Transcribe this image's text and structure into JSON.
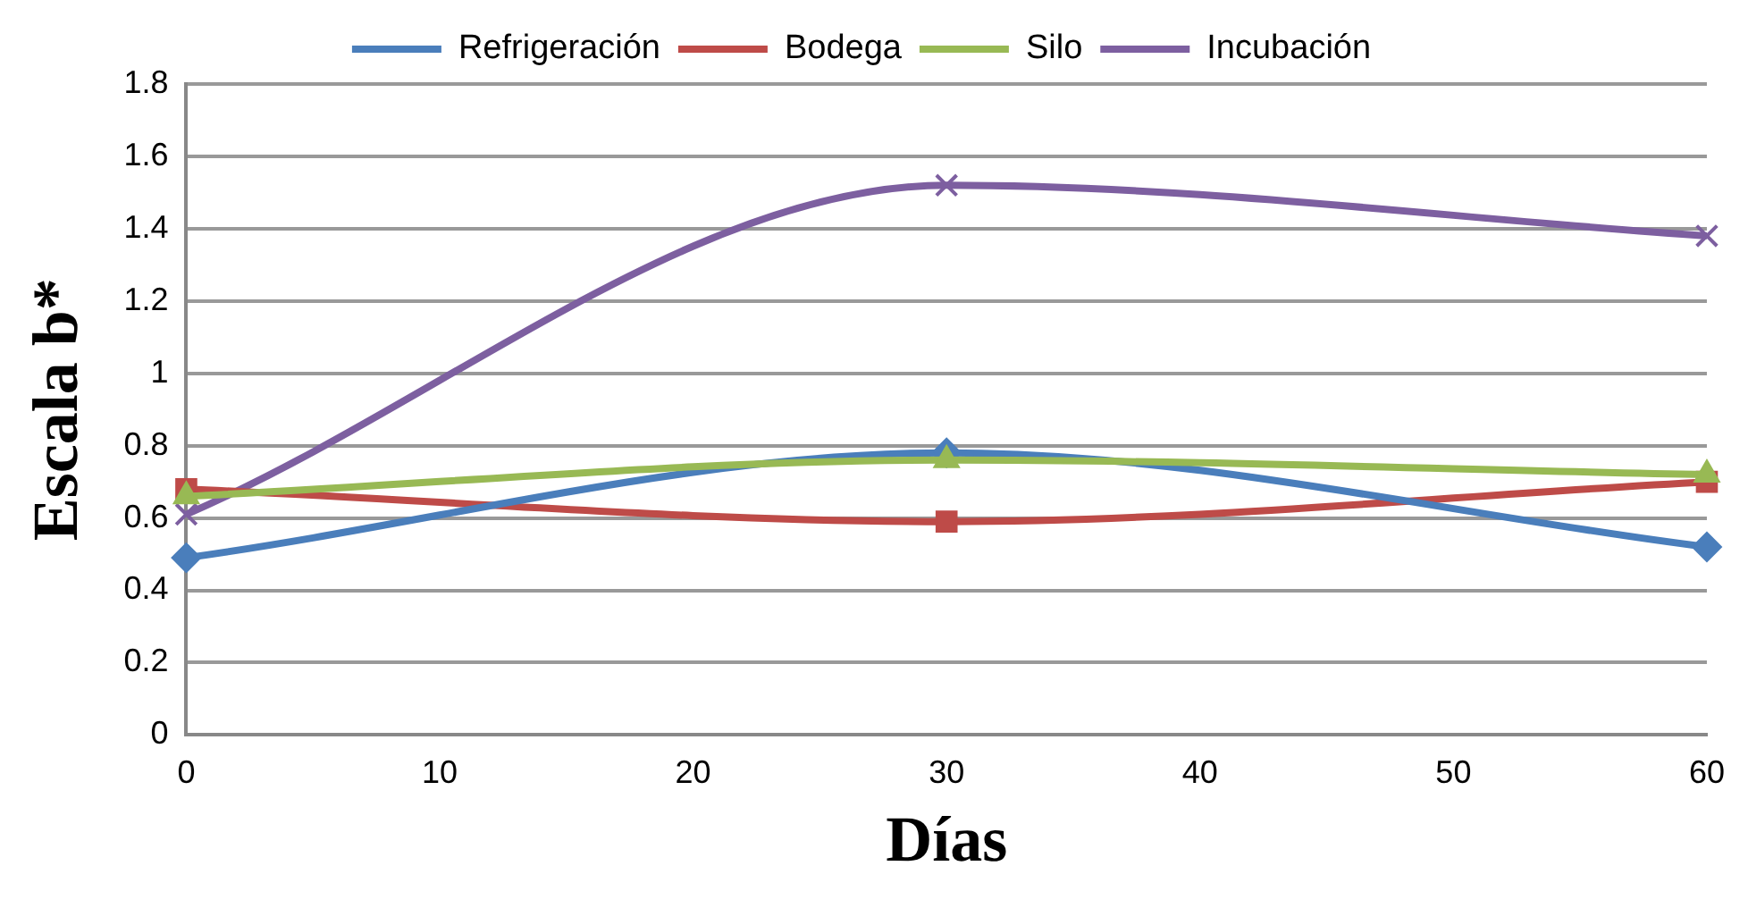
{
  "chart_data": {
    "type": "line",
    "xlabel": "Días",
    "ylabel": "Escala b*",
    "x": [
      0,
      30,
      60
    ],
    "series": [
      {
        "name": "Refrigeración",
        "color": "#4a7ebb",
        "values": [
          0.49,
          0.78,
          0.52
        ],
        "marker": "diamond"
      },
      {
        "name": "Bodega",
        "color": "#be4b48",
        "values": [
          0.68,
          0.59,
          0.7
        ],
        "marker": "square"
      },
      {
        "name": "Silo",
        "color": "#98b954",
        "values": [
          0.66,
          0.76,
          0.72
        ],
        "marker": "triangle"
      },
      {
        "name": "Incubación",
        "color": "#7d5fa0",
        "values": [
          0.61,
          1.52,
          1.38
        ],
        "marker": "cross"
      }
    ],
    "xlim": [
      0,
      60
    ],
    "xticks": [
      0,
      10,
      20,
      30,
      40,
      50,
      60
    ],
    "ylim": [
      0,
      1.8
    ],
    "yticks": [
      0,
      0.2,
      0.4,
      0.6,
      0.8,
      1,
      1.2,
      1.4,
      1.6,
      1.8
    ],
    "grid": "y",
    "legend": "top",
    "line_style": "solid"
  }
}
